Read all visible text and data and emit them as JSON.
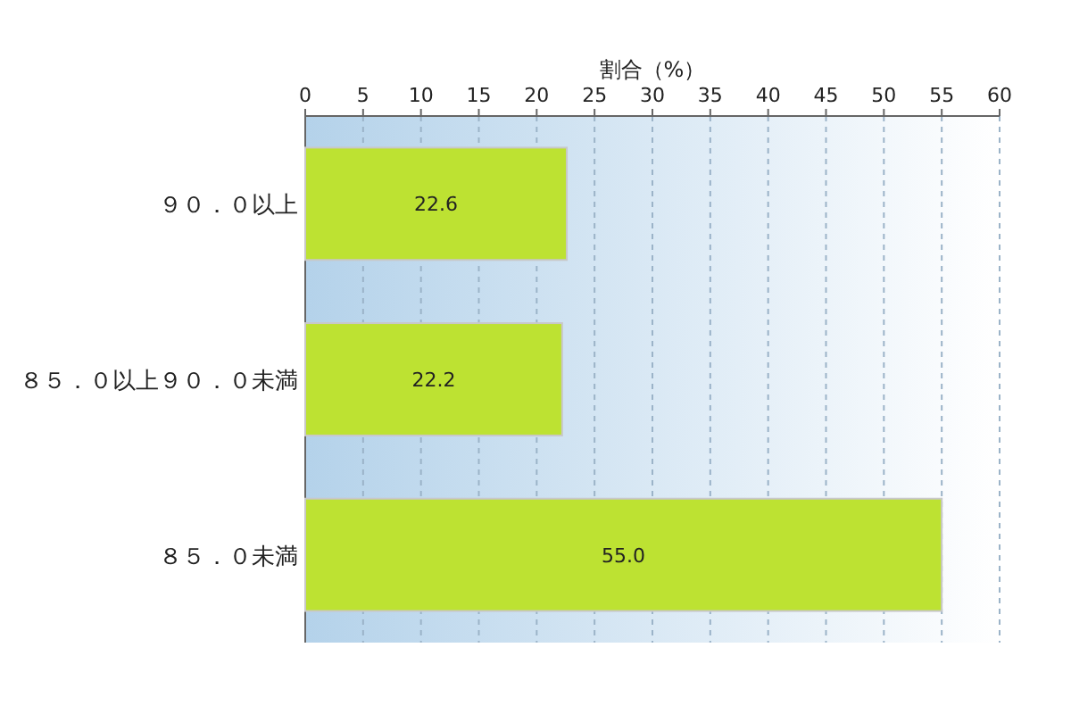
{
  "chart_data": {
    "type": "bar",
    "orientation": "horizontal",
    "xlabel": "割合（%）",
    "categories": [
      "９０．０以上",
      "８５．０以上９０．０未満",
      "８５．０未満"
    ],
    "values": [
      22.6,
      22.2,
      55.0
    ],
    "value_labels": [
      "22.6",
      "22.2",
      "55.0"
    ],
    "color": "#bde232",
    "xlim": [
      0,
      60
    ],
    "xticks": [
      0,
      5,
      10,
      15,
      20,
      25,
      30,
      35,
      40,
      45,
      50,
      55,
      60
    ],
    "grid": "x"
  }
}
